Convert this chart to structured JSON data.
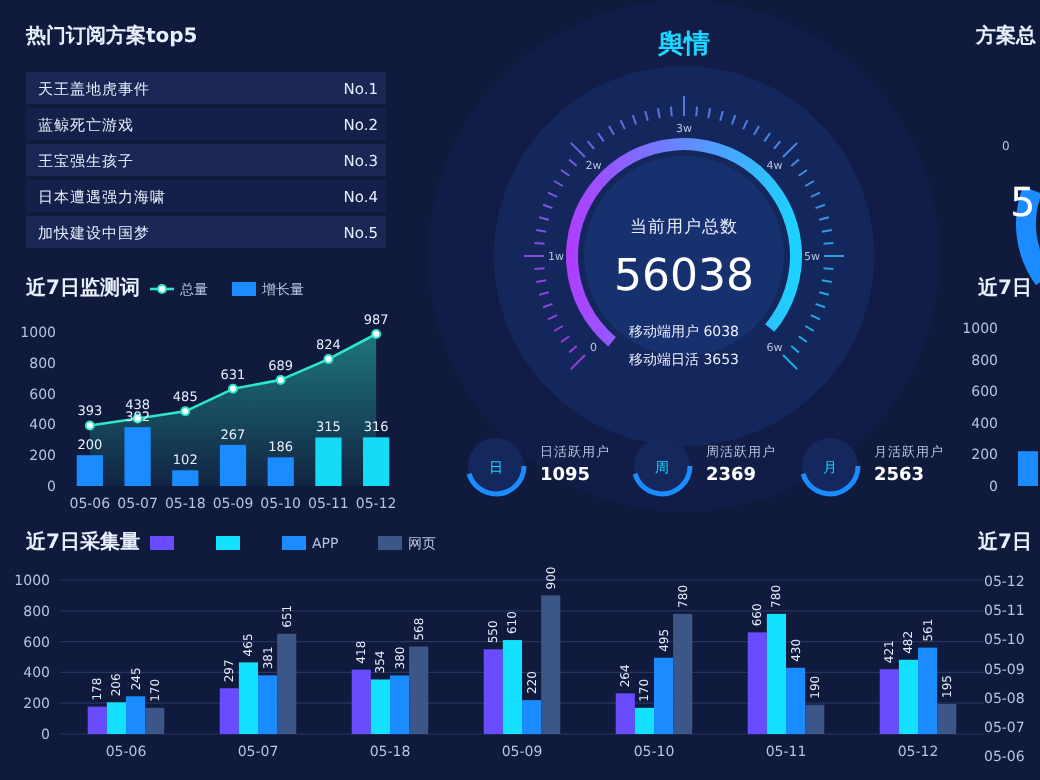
{
  "chart_data": [
    {
      "type": "other",
      "title": "热门订阅方案top5",
      "annotations": [
        "天王盖地虎事件",
        "No.1",
        "蓝鲸死亡游戏",
        "No.2",
        "王宝强生孩子",
        "No.3",
        "日本遭遇强力海啸",
        "No.4",
        "加快建设中国梦",
        "No.5"
      ]
    },
    {
      "type": "other",
      "title": "舆情",
      "annotations": [
        "当前用户总数",
        "56038",
        "移动端用户 6038",
        "移动端日活 3653",
        "0",
        "1w",
        "2w",
        "3w",
        "4w",
        "5w",
        "6w",
        "日",
        "日活跃用户",
        "1095",
        "周",
        "周活跃用户",
        "2369",
        "月",
        "月活跃用户",
        "2563"
      ]
    },
    {
      "type": "other",
      "title": "方案总",
      "annotations": [
        "0",
        "5"
      ]
    },
    {
      "type": "bar",
      "title": "近7日监测词",
      "categories": [
        "05-06",
        "05-07",
        "05-18",
        "05-09",
        "05-10",
        "05-11",
        "05-12"
      ],
      "ylim": [
        0,
        1000
      ],
      "yticks": [
        0,
        200,
        400,
        600,
        800,
        1000
      ],
      "data_labels": true,
      "legend": "top",
      "marker": "circle",
      "series": [
        {
          "name": "总量",
          "type": "area",
          "color": "#2ee6c8",
          "values": [
            393,
            438,
            485,
            631,
            689,
            824,
            987
          ]
        },
        {
          "name": "增长量",
          "type": "bar",
          "color": "#1a8cff",
          "colors": [
            "#1a8cff",
            "#1a8cff",
            "#1a8cff",
            "#1a8cff",
            "#1a8cff",
            "#14dcf7",
            "#14dcf7"
          ],
          "values": [
            200,
            382,
            102,
            267,
            186,
            315,
            316
          ]
        }
      ]
    },
    {
      "type": "bar",
      "title": "近7日",
      "categories": [
        null
      ],
      "ylim": [
        0,
        1000
      ],
      "yticks": [
        0,
        200,
        400,
        600,
        800,
        1000
      ],
      "series": [
        {
          "color": "#1a8cff",
          "values": [
            220
          ]
        }
      ]
    },
    {
      "type": "bar",
      "title": "近7日采集量",
      "categories": [
        "05-06",
        "05-07",
        "05-18",
        "05-09",
        "05-10",
        "05-11",
        "05-12"
      ],
      "ylim": [
        0,
        1000
      ],
      "yticks": [
        0,
        200,
        400,
        600,
        800,
        1000
      ],
      "grid": "y",
      "data_labels": true,
      "legend": "top",
      "series": [
        {
          "color": "#6a4cff",
          "values": [
            178,
            297,
            418,
            550,
            264,
            660,
            421
          ]
        },
        {
          "color": "#14e1ff",
          "values": [
            206,
            465,
            354,
            610,
            170,
            780,
            482
          ]
        },
        {
          "name": "APP",
          "color": "#1a8cff",
          "values": [
            245,
            381,
            380,
            220,
            495,
            430,
            561
          ]
        },
        {
          "name": "网页",
          "color": "#3d5688",
          "values": [
            170,
            651,
            568,
            900,
            780,
            190,
            195
          ]
        }
      ]
    },
    {
      "type": "other",
      "title": "近7日",
      "annotations": [
        "05-12",
        "05-11",
        "05-10",
        "05-09",
        "05-08",
        "05-07",
        "05-06"
      ]
    }
  ]
}
